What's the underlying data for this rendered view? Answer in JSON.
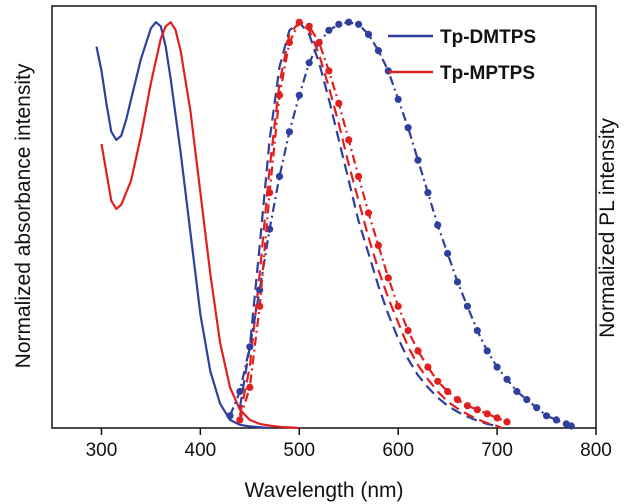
{
  "chart_data": {
    "type": "line",
    "xlabel": "Wavelength (nm)",
    "ylabel_left": "Normalized  absorbance intensity",
    "ylabel_right": "Normalized  PL intensity",
    "xlim": [
      250,
      800
    ],
    "ylim": [
      0,
      1.04
    ],
    "xticks": [
      300,
      400,
      500,
      600,
      700,
      800
    ],
    "grid": false,
    "legend_position": "top-right",
    "legend": [
      {
        "name": "Tp-DMTPS",
        "color": "#2f3f9e"
      },
      {
        "name": "Tp-MPTPS",
        "color": "#e02020"
      }
    ],
    "series": [
      {
        "name": "Tp-DMTPS",
        "kind": "absorption",
        "color": "#2f3f9e",
        "style": "solid",
        "x": [
          295,
          300,
          305,
          310,
          315,
          320,
          325,
          330,
          340,
          350,
          355,
          360,
          365,
          370,
          380,
          390,
          400,
          410,
          420,
          430,
          440,
          450,
          460,
          470
        ],
        "y": [
          0.94,
          0.88,
          0.8,
          0.73,
          0.71,
          0.72,
          0.76,
          0.81,
          0.91,
          0.985,
          1.0,
          0.99,
          0.94,
          0.86,
          0.68,
          0.48,
          0.28,
          0.14,
          0.06,
          0.02,
          0.008,
          0.004,
          0.002,
          0.0
        ]
      },
      {
        "name": "Tp-MPTPS",
        "kind": "absorption",
        "color": "#e02020",
        "style": "solid",
        "x": [
          300,
          305,
          310,
          315,
          320,
          330,
          340,
          350,
          360,
          365,
          370,
          375,
          380,
          390,
          400,
          410,
          420,
          430,
          440,
          450,
          460,
          470,
          480,
          490,
          500
        ],
        "y": [
          0.7,
          0.63,
          0.56,
          0.54,
          0.55,
          0.61,
          0.72,
          0.85,
          0.96,
          0.99,
          1.0,
          0.98,
          0.93,
          0.78,
          0.58,
          0.38,
          0.21,
          0.1,
          0.045,
          0.02,
          0.01,
          0.006,
          0.003,
          0.0015,
          0.0
        ]
      },
      {
        "name": "Tp-DMTPS",
        "kind": "PL solution",
        "color": "#2f3f9e",
        "style": "dashed",
        "x": [
          440,
          450,
          460,
          470,
          480,
          490,
          500,
          510,
          520,
          530,
          540,
          550,
          560,
          570,
          580,
          590,
          600,
          610,
          620,
          630,
          640,
          650,
          660,
          670,
          680,
          690,
          700
        ],
        "y": [
          0.05,
          0.2,
          0.45,
          0.71,
          0.89,
          0.98,
          1.0,
          0.97,
          0.9,
          0.81,
          0.71,
          0.61,
          0.51,
          0.43,
          0.35,
          0.28,
          0.22,
          0.17,
          0.13,
          0.1,
          0.075,
          0.055,
          0.04,
          0.028,
          0.018,
          0.01,
          0.005
        ]
      },
      {
        "name": "Tp-MPTPS",
        "kind": "PL solution",
        "color": "#e02020",
        "style": "dashed",
        "x": [
          440,
          450,
          460,
          470,
          480,
          490,
          500,
          510,
          520,
          530,
          540,
          550,
          560,
          570,
          580,
          590,
          600,
          610,
          620,
          630,
          640,
          650,
          660,
          670,
          680,
          690,
          700,
          705
        ],
        "y": [
          0.03,
          0.15,
          0.38,
          0.64,
          0.85,
          0.97,
          1.0,
          0.98,
          0.92,
          0.84,
          0.75,
          0.65,
          0.56,
          0.47,
          0.39,
          0.32,
          0.26,
          0.2,
          0.155,
          0.12,
          0.09,
          0.065,
          0.048,
          0.034,
          0.022,
          0.012,
          0.005,
          0.0
        ]
      },
      {
        "name": "Tp-DMTPS",
        "kind": "PL film",
        "color": "#2f3f9e",
        "style": "dash-dot-markers",
        "x": [
          430,
          440,
          450,
          460,
          470,
          480,
          490,
          500,
          510,
          520,
          530,
          540,
          550,
          560,
          570,
          580,
          590,
          600,
          610,
          620,
          630,
          640,
          650,
          660,
          670,
          680,
          690,
          700,
          710,
          720,
          730,
          740,
          750,
          760,
          770,
          775
        ],
        "y": [
          0.03,
          0.09,
          0.2,
          0.34,
          0.49,
          0.62,
          0.73,
          0.82,
          0.9,
          0.95,
          0.98,
          0.995,
          1.0,
          0.995,
          0.97,
          0.93,
          0.88,
          0.81,
          0.74,
          0.66,
          0.58,
          0.5,
          0.43,
          0.36,
          0.3,
          0.24,
          0.19,
          0.15,
          0.12,
          0.09,
          0.07,
          0.05,
          0.03,
          0.02,
          0.01,
          0.005
        ]
      },
      {
        "name": "Tp-MPTPS",
        "kind": "PL film",
        "color": "#e02020",
        "style": "dash-dot-markers",
        "x": [
          440,
          450,
          460,
          470,
          480,
          490,
          500,
          510,
          520,
          530,
          540,
          550,
          560,
          570,
          580,
          590,
          600,
          610,
          620,
          630,
          640,
          650,
          660,
          670,
          680,
          690,
          700,
          710
        ],
        "y": [
          0.02,
          0.1,
          0.3,
          0.58,
          0.82,
          0.95,
          1.0,
          0.99,
          0.95,
          0.88,
          0.8,
          0.71,
          0.62,
          0.53,
          0.45,
          0.37,
          0.3,
          0.24,
          0.19,
          0.15,
          0.115,
          0.09,
          0.07,
          0.055,
          0.045,
          0.035,
          0.025,
          0.015
        ]
      }
    ]
  }
}
